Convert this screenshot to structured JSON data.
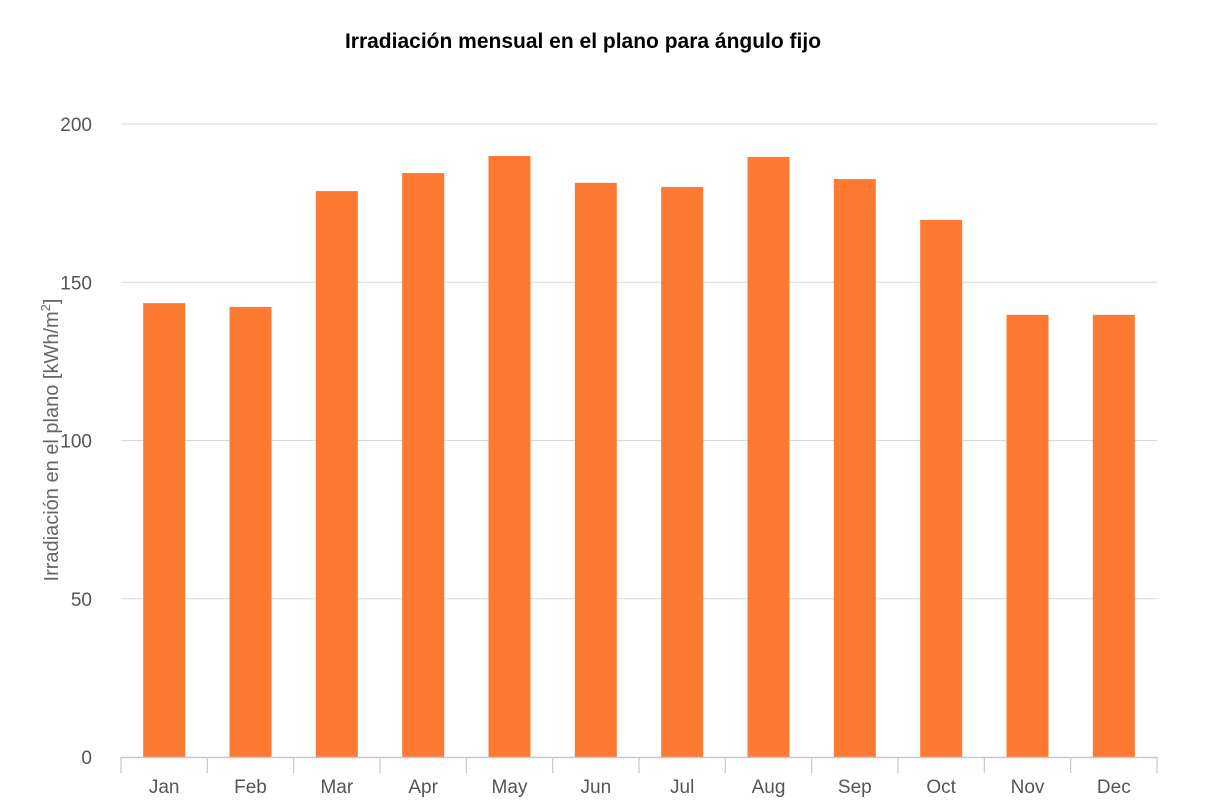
{
  "chart_data": {
    "type": "bar",
    "title": "Irradiación mensual en el plano para ángulo fijo",
    "xlabel": "",
    "ylabel": "Irradiación en el plano [kWh/m",
    "ylabel_superscript": "2",
    "ylabel_suffix": "]",
    "categories": [
      "Jan",
      "Feb",
      "Mar",
      "Apr",
      "May",
      "Jun",
      "Jul",
      "Aug",
      "Sep",
      "Oct",
      "Nov",
      "Dec"
    ],
    "values": [
      143.4,
      142.2,
      178.8,
      184.5,
      189.9,
      181.4,
      180.1,
      189.6,
      182.6,
      169.7,
      139.7,
      139.7
    ],
    "ylim": [
      0,
      200
    ],
    "yticks": [
      0,
      50,
      100,
      150,
      200
    ],
    "grid": true,
    "legend": "none",
    "bar_color": "#fd7a32"
  }
}
